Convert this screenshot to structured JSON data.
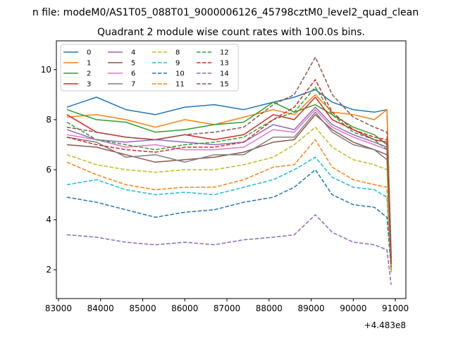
{
  "figure": {
    "suptitle": "n file: modeM0/AS1T05_088T01_9000006126_45798cztM0_level2_quad_clean"
  },
  "chart_data": {
    "type": "line",
    "title": "Quadrant 2 module wise count rates with 100.0s bins.",
    "xlabel": "",
    "ylabel": "",
    "x_offset_label": "+4.483e8",
    "xlim": [
      82950,
      91250
    ],
    "ylim": [
      0.85,
      11.15
    ],
    "xticks": [
      83000,
      84000,
      85000,
      86000,
      87000,
      88000,
      89000,
      90000,
      91000
    ],
    "yticks": [
      2,
      4,
      6,
      8,
      10
    ],
    "grid": false,
    "legend": {
      "placement": "top-left",
      "columns": 4
    },
    "x": [
      83200,
      83900,
      84600,
      85300,
      86000,
      86700,
      87400,
      88100,
      88600,
      89100,
      89500,
      90000,
      90500,
      90800,
      90900
    ],
    "series": [
      {
        "name": "0",
        "color": "#1f77b4",
        "dash": "solid",
        "values": [
          8.5,
          8.9,
          8.4,
          8.2,
          8.5,
          8.6,
          8.4,
          8.7,
          8.9,
          9.2,
          8.7,
          8.4,
          8.3,
          8.4,
          2.6
        ]
      },
      {
        "name": "1",
        "color": "#ff7f0e",
        "dash": "solid",
        "values": [
          8.1,
          8.2,
          8.0,
          7.7,
          8.0,
          7.8,
          8.1,
          8.4,
          8.2,
          9.0,
          8.3,
          8.2,
          8.0,
          8.4,
          2.4
        ]
      },
      {
        "name": "2",
        "color": "#2ca02c",
        "dash": "solid",
        "values": [
          8.4,
          8.0,
          7.9,
          7.5,
          7.6,
          7.8,
          7.9,
          8.7,
          8.3,
          8.6,
          8.2,
          7.7,
          7.4,
          7.0,
          2.3
        ]
      },
      {
        "name": "3",
        "color": "#d62728",
        "dash": "solid",
        "values": [
          8.2,
          7.5,
          7.3,
          7.2,
          7.4,
          7.2,
          7.4,
          8.2,
          8.0,
          8.9,
          8.0,
          7.6,
          7.2,
          7.1,
          2.4
        ]
      },
      {
        "name": "4",
        "color": "#9467bd",
        "dash": "solid",
        "values": [
          7.6,
          7.2,
          7.1,
          7.2,
          7.1,
          7.0,
          7.1,
          7.8,
          7.6,
          8.5,
          7.8,
          7.4,
          7.1,
          6.9,
          2.2
        ]
      },
      {
        "name": "5",
        "color": "#8c564b",
        "dash": "solid",
        "values": [
          7.0,
          6.9,
          6.6,
          6.3,
          6.4,
          6.5,
          6.7,
          7.1,
          7.2,
          8.2,
          7.6,
          7.1,
          6.8,
          6.6,
          2.1
        ]
      },
      {
        "name": "6",
        "color": "#e377c2",
        "dash": "solid",
        "values": [
          7.4,
          7.2,
          6.9,
          7.0,
          6.8,
          6.8,
          6.9,
          7.6,
          7.5,
          8.4,
          7.7,
          7.3,
          7.0,
          6.8,
          2.2
        ]
      },
      {
        "name": "7",
        "color": "#7f7f7f",
        "dash": "solid",
        "values": [
          7.3,
          7.1,
          6.5,
          6.6,
          6.3,
          6.6,
          6.6,
          7.3,
          7.3,
          8.3,
          7.5,
          7.0,
          6.8,
          6.4,
          2.1
        ]
      },
      {
        "name": "8",
        "color": "#bcbd22",
        "dash": "dashed",
        "values": [
          6.6,
          6.2,
          6.0,
          5.9,
          6.0,
          6.0,
          6.2,
          6.5,
          7.0,
          7.7,
          6.9,
          6.4,
          6.2,
          6.0,
          2.0
        ]
      },
      {
        "name": "9",
        "color": "#17becf",
        "dash": "dashed",
        "values": [
          5.4,
          5.6,
          5.2,
          5.0,
          5.1,
          5.0,
          5.3,
          5.6,
          6.0,
          6.5,
          5.7,
          5.3,
          5.2,
          4.9,
          1.9
        ]
      },
      {
        "name": "10",
        "color": "#1f77b4",
        "dash": "dashed",
        "values": [
          4.9,
          4.7,
          4.4,
          4.1,
          4.3,
          4.4,
          4.7,
          4.9,
          5.3,
          6.0,
          5.0,
          4.6,
          4.5,
          4.1,
          2.0
        ]
      },
      {
        "name": "11",
        "color": "#ff7f0e",
        "dash": "dashed",
        "values": [
          6.3,
          5.8,
          5.4,
          5.2,
          5.3,
          5.3,
          5.6,
          6.1,
          6.2,
          7.2,
          6.1,
          5.6,
          5.4,
          5.3,
          1.9
        ]
      },
      {
        "name": "12",
        "color": "#2ca02c",
        "dash": "dashed",
        "values": [
          7.9,
          7.2,
          7.0,
          6.8,
          7.0,
          7.1,
          7.3,
          8.0,
          8.3,
          9.3,
          8.2,
          7.5,
          7.2,
          6.8,
          2.3
        ]
      },
      {
        "name": "13",
        "color": "#d62728",
        "dash": "dashed",
        "values": [
          7.3,
          7.0,
          6.8,
          6.7,
          6.9,
          6.9,
          7.1,
          8.0,
          8.5,
          9.6,
          8.3,
          7.6,
          7.3,
          7.2,
          2.2
        ]
      },
      {
        "name": "14",
        "color": "#9467bd",
        "dash": "dashed",
        "values": [
          3.4,
          3.3,
          3.1,
          3.0,
          3.1,
          3.0,
          3.2,
          3.3,
          3.4,
          4.2,
          3.5,
          3.1,
          3.0,
          2.8,
          1.4
        ]
      },
      {
        "name": "15",
        "color": "#8c564b",
        "dash": "dashed",
        "values": [
          7.7,
          7.5,
          7.3,
          7.2,
          7.4,
          7.5,
          7.7,
          8.6,
          9.0,
          10.5,
          9.0,
          8.1,
          7.7,
          7.5,
          2.5
        ]
      }
    ]
  }
}
